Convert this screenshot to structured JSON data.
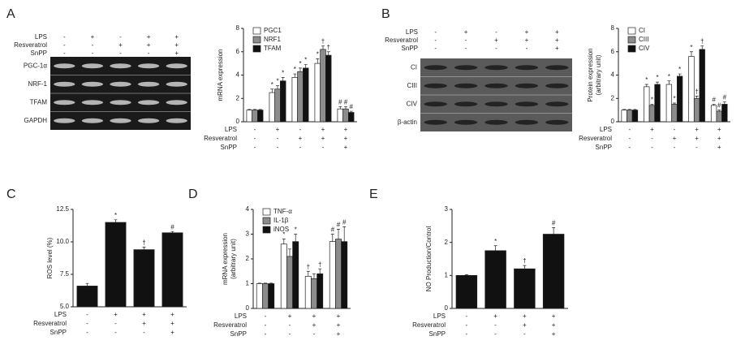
{
  "chart_data": [
    {
      "panel": "A",
      "type": "bar",
      "ylabel": [
        "mRNA expression"
      ],
      "ylim": [
        0,
        8
      ],
      "yticks": [
        0,
        2,
        4,
        6,
        8
      ],
      "legend": "upper-left",
      "series": [
        {
          "name": "PGC1",
          "color": "#ffffff",
          "values": [
            1,
            2.5,
            3.8,
            5.0,
            1.1
          ],
          "errors": [
            0.05,
            0.3,
            0.3,
            0.4,
            0.2
          ],
          "markers": [
            null,
            "*",
            "*",
            "*",
            "#"
          ]
        },
        {
          "name": "NRF1",
          "color": "#8c8c8c",
          "values": [
            1,
            2.8,
            4.3,
            6.2,
            1.1
          ],
          "errors": [
            0.05,
            0.3,
            0.3,
            0.3,
            0.2
          ],
          "markers": [
            null,
            "*",
            "*",
            "†",
            "#"
          ]
        },
        {
          "name": "TFAM",
          "color": "#111111",
          "values": [
            1,
            3.5,
            4.6,
            5.7,
            0.8
          ],
          "errors": [
            0.05,
            0.3,
            0.3,
            0.3,
            0.1
          ],
          "markers": [
            null,
            "*",
            "*",
            "†",
            "#"
          ]
        }
      ],
      "conditions": [
        {
          "name": "LPS",
          "signs": [
            "-",
            "+",
            "-",
            "+",
            "+"
          ]
        },
        {
          "name": "Resveratrol",
          "signs": [
            "-",
            "-",
            "+",
            "+",
            "+"
          ]
        },
        {
          "name": "SnPP",
          "signs": [
            "-",
            "-",
            "-",
            "-",
            "+"
          ]
        }
      ],
      "blot": {
        "rows": [
          "PGC-1α",
          "NRF-1",
          "TFAM",
          "GAPDH"
        ],
        "conditions": [
          {
            "name": "LPS",
            "signs": [
              "-",
              "+",
              "-",
              "+",
              "+"
            ]
          },
          {
            "name": "Resveratrol",
            "signs": [
              "-",
              "-",
              "+",
              "+",
              "+"
            ]
          },
          {
            "name": "SnPP",
            "signs": [
              "-",
              "-",
              "-",
              "-",
              "+"
            ]
          }
        ]
      }
    },
    {
      "panel": "B",
      "type": "bar",
      "ylabel": [
        "Protein expression",
        "(arbitrary unit)"
      ],
      "ylim": [
        0,
        8
      ],
      "yticks": [
        0,
        2,
        4,
        6,
        8
      ],
      "legend": "upper-left",
      "series": [
        {
          "name": "CI",
          "color": "#ffffff",
          "values": [
            1,
            3.0,
            3.2,
            5.6,
            1.4
          ],
          "errors": [
            0.05,
            0.2,
            0.3,
            0.4,
            0.1
          ],
          "markers": [
            null,
            "*",
            "*",
            "*",
            "#"
          ]
        },
        {
          "name": "CIII",
          "color": "#8c8c8c",
          "values": [
            1,
            1.4,
            1.5,
            2.0,
            0.9
          ],
          "errors": [
            0.05,
            0.1,
            0.1,
            0.2,
            0.1
          ],
          "markers": [
            null,
            "*",
            "*",
            "†",
            "#"
          ]
        },
        {
          "name": "CIV",
          "color": "#111111",
          "values": [
            1,
            3.2,
            3.9,
            6.2,
            1.5
          ],
          "errors": [
            0.05,
            0.2,
            0.2,
            0.3,
            0.2
          ],
          "markers": [
            null,
            "*",
            "*",
            "†",
            "#"
          ]
        }
      ],
      "conditions": [
        {
          "name": "LPS",
          "signs": [
            "-",
            "+",
            "-",
            "+",
            "+"
          ]
        },
        {
          "name": "Resveratrol",
          "signs": [
            "-",
            "-",
            "+",
            "+",
            "+"
          ]
        },
        {
          "name": "SnPP",
          "signs": [
            "-",
            "-",
            "-",
            "-",
            "+"
          ]
        }
      ],
      "blot": {
        "rows": [
          "CI",
          "CIII",
          "CIV",
          "β-actin"
        ],
        "conditions": [
          {
            "name": "LPS",
            "signs": [
              "-",
              "+",
              "-",
              "+",
              "+"
            ]
          },
          {
            "name": "Resveratrol",
            "signs": [
              "-",
              "-",
              "+",
              "+",
              "+"
            ]
          },
          {
            "name": "SnPP",
            "signs": [
              "-",
              "-",
              "-",
              "-",
              "+"
            ]
          }
        ]
      }
    },
    {
      "panel": "C",
      "type": "bar",
      "ylabel": [
        "ROS level (%)"
      ],
      "ylim": [
        5,
        12.5
      ],
      "yticks": [
        {
          "value": 5,
          "label": "5.0"
        },
        {
          "value": 7.5,
          "label": "7.5"
        },
        {
          "value": 10,
          "label": "10.0"
        },
        {
          "value": 12.5,
          "label": "12.5"
        }
      ],
      "series": [
        {
          "color": "#111111",
          "values": [
            6.6,
            11.5,
            9.4,
            10.7
          ],
          "errors": [
            0.2,
            0.2,
            0.2,
            0.1
          ],
          "markers": [
            null,
            "*",
            "†",
            "#"
          ]
        }
      ],
      "conditions": [
        {
          "name": "LPS",
          "signs": [
            "-",
            "+",
            "+",
            "+"
          ]
        },
        {
          "name": "Resveratrol",
          "signs": [
            "-",
            "-",
            "+",
            "+"
          ]
        },
        {
          "name": "SnPP",
          "signs": [
            "-",
            "-",
            "-",
            "+"
          ]
        }
      ]
    },
    {
      "panel": "D",
      "type": "bar",
      "ylabel": [
        "mRNA expression",
        "(arbitrary unit)"
      ],
      "ylim": [
        0,
        4
      ],
      "yticks": [
        0,
        1,
        2,
        3,
        4
      ],
      "legend": "upper-left",
      "series": [
        {
          "name": "TNF-α",
          "color": "#ffffff",
          "values": [
            1,
            2.6,
            1.3,
            2.7
          ],
          "errors": [
            0.02,
            0.2,
            0.2,
            0.3
          ],
          "markers": [
            null,
            "*",
            "†",
            "#"
          ]
        },
        {
          "name": "IL-1β",
          "color": "#8c8c8c",
          "values": [
            1,
            2.1,
            1.2,
            2.8
          ],
          "errors": [
            0.02,
            0.3,
            0.2,
            0.4
          ],
          "markers": [
            null,
            null,
            null,
            "#"
          ]
        },
        {
          "name": "iNOS",
          "color": "#111111",
          "values": [
            1,
            2.7,
            1.4,
            2.7
          ],
          "errors": [
            0.02,
            0.3,
            0.2,
            0.6
          ],
          "markers": [
            null,
            "*",
            "†",
            "#"
          ]
        }
      ],
      "conditions": [
        {
          "name": "LPS",
          "signs": [
            "-",
            "+",
            "+",
            "+"
          ]
        },
        {
          "name": "Resveratrol",
          "signs": [
            "-",
            "-",
            "+",
            "+"
          ]
        },
        {
          "name": "SnPP",
          "signs": [
            "-",
            "-",
            "-",
            "+"
          ]
        }
      ]
    },
    {
      "panel": "E",
      "type": "bar",
      "ylabel": [
        "NO Production/Control"
      ],
      "ylim": [
        0,
        3
      ],
      "yticks": [
        0,
        1,
        2,
        3
      ],
      "series": [
        {
          "color": "#111111",
          "values": [
            1.0,
            1.75,
            1.2,
            2.25
          ],
          "errors": [
            0.02,
            0.15,
            0.1,
            0.2
          ],
          "markers": [
            null,
            "*",
            "†",
            "#"
          ]
        }
      ],
      "conditions": [
        {
          "name": "LPS",
          "signs": [
            "-",
            "+",
            "+",
            "+"
          ]
        },
        {
          "name": "Resveratrol",
          "signs": [
            "-",
            "-",
            "+",
            "+"
          ]
        },
        {
          "name": "SnPP",
          "signs": [
            "-",
            "-",
            "-",
            "+"
          ]
        }
      ]
    }
  ]
}
